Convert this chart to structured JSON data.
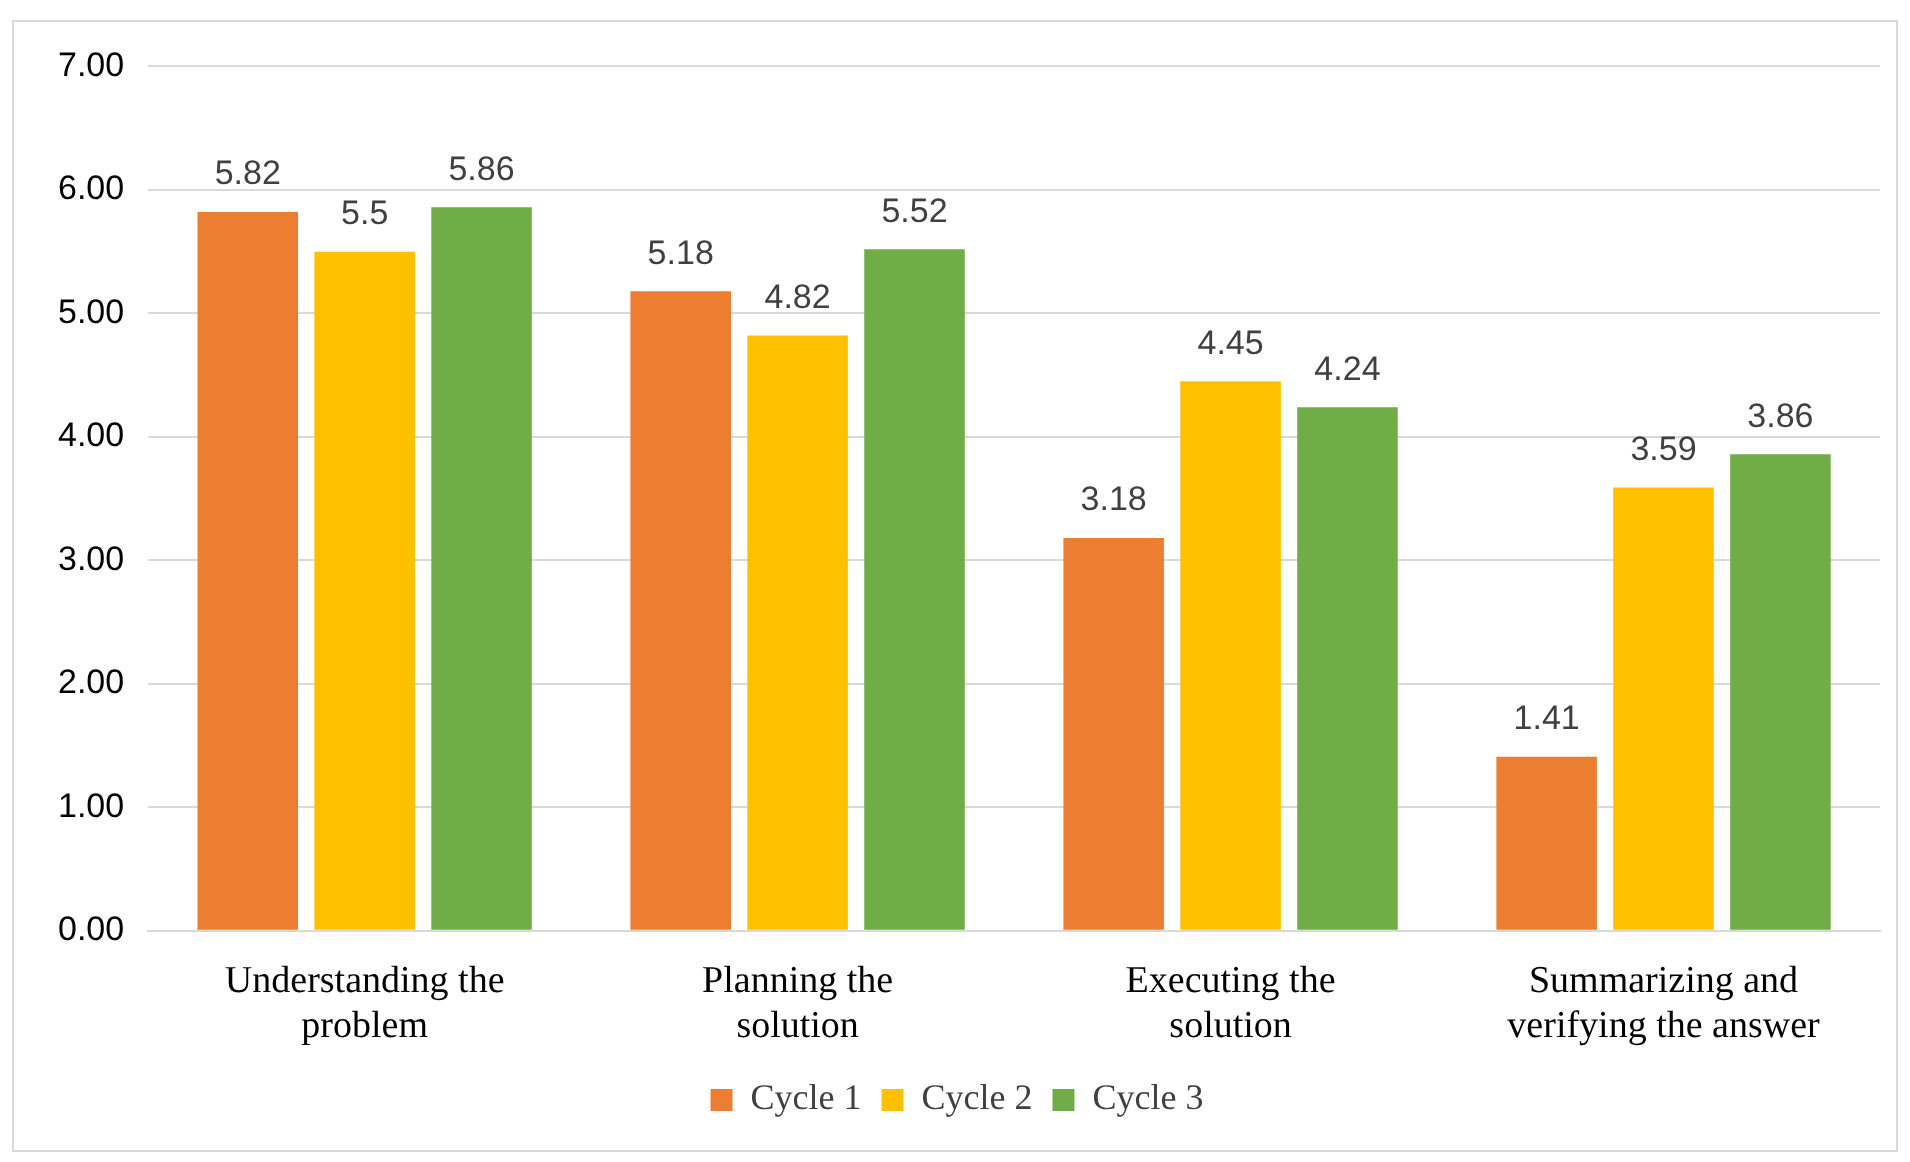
{
  "chart_data": {
    "type": "bar",
    "categories": [
      "Understanding the problem",
      "Planning the solution",
      "Executing the solution",
      "Summarizing and verifying the answer"
    ],
    "series": [
      {
        "name": "Cycle 1",
        "color": "#ed7d31",
        "values": [
          5.82,
          5.18,
          3.18,
          1.41
        ]
      },
      {
        "name": "Cycle 2",
        "color": "#ffc000",
        "values": [
          5.5,
          4.82,
          4.45,
          3.59
        ]
      },
      {
        "name": "Cycle 3",
        "color": "#70ad47",
        "values": [
          5.86,
          5.52,
          4.24,
          3.86
        ]
      }
    ],
    "ylim": [
      0,
      7
    ],
    "yticks": [
      {
        "value": 0,
        "label": "0.00"
      },
      {
        "value": 1,
        "label": "1.00"
      },
      {
        "value": 2,
        "label": "2.00"
      },
      {
        "value": 3,
        "label": "3.00"
      },
      {
        "value": 4,
        "label": "4.00"
      },
      {
        "value": 5,
        "label": "5.00"
      },
      {
        "value": 6,
        "label": "6.00"
      },
      {
        "value": 7,
        "label": "7.00"
      }
    ],
    "grid": "y",
    "legend": "bottom",
    "data_labels": true
  }
}
